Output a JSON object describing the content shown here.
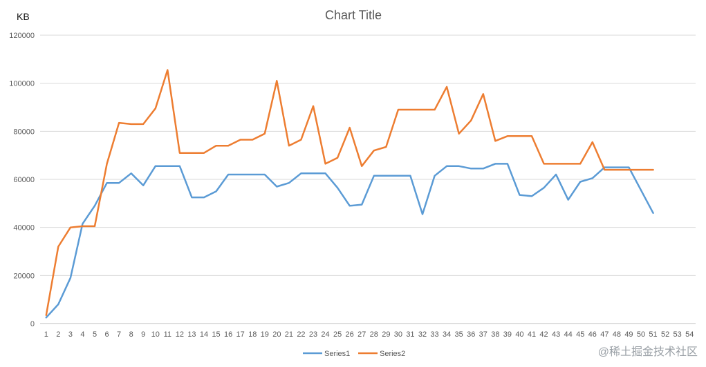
{
  "chart_data": {
    "type": "line",
    "title": "Chart Title",
    "unit_label": "KB",
    "xlabel": "",
    "ylabel": "",
    "ylim": [
      0,
      120000
    ],
    "yticks": [
      0,
      20000,
      40000,
      60000,
      80000,
      100000,
      120000
    ],
    "ytick_labels": [
      "0",
      "20000",
      "40000",
      "60000",
      "80000",
      "100000",
      "120000"
    ],
    "grid": true,
    "legend": "bottom-center",
    "categories": [
      "1",
      "2",
      "3",
      "4",
      "5",
      "6",
      "7",
      "8",
      "9",
      "10",
      "11",
      "12",
      "13",
      "14",
      "15",
      "16",
      "17",
      "18",
      "19",
      "20",
      "21",
      "22",
      "23",
      "24",
      "25",
      "26",
      "27",
      "28",
      "29",
      "30",
      "31",
      "32",
      "33",
      "34",
      "35",
      "36",
      "37",
      "38",
      "39",
      "40",
      "41",
      "42",
      "43",
      "44",
      "45",
      "46",
      "47",
      "48",
      "49",
      "50",
      "51",
      "52",
      "53",
      "54"
    ],
    "series": [
      {
        "name": "Series1",
        "color": "#5b9bd5",
        "values": [
          2500,
          8000,
          19000,
          41500,
          49000,
          58500,
          58500,
          62500,
          57500,
          65500,
          65500,
          65500,
          52500,
          52500,
          55000,
          62000,
          62000,
          62000,
          62000,
          57000,
          58500,
          62500,
          62500,
          62500,
          56500,
          49000,
          49500,
          61500,
          61500,
          61500,
          61500,
          45500,
          61500,
          65500,
          65500,
          64500,
          64500,
          66500,
          66500,
          53500,
          53000,
          56500,
          62000,
          51500,
          59000,
          60500,
          65000,
          65000,
          65000,
          55500,
          46000,
          null,
          null,
          null
        ]
      },
      {
        "name": "Series2",
        "color": "#ed7d31",
        "values": [
          3500,
          32000,
          40000,
          40500,
          40500,
          66500,
          83500,
          83000,
          83000,
          89500,
          105500,
          71000,
          71000,
          71000,
          74000,
          74000,
          76500,
          76500,
          79000,
          101000,
          74000,
          76500,
          90500,
          66500,
          69000,
          81500,
          65500,
          72000,
          73500,
          89000,
          89000,
          89000,
          89000,
          98500,
          79000,
          84500,
          95500,
          76000,
          78000,
          78000,
          78000,
          66500,
          66500,
          66500,
          66500,
          75500,
          64000,
          64000,
          64000,
          64000,
          64000,
          null,
          null,
          null
        ]
      }
    ]
  },
  "watermark": "@稀土掘金技术社区"
}
